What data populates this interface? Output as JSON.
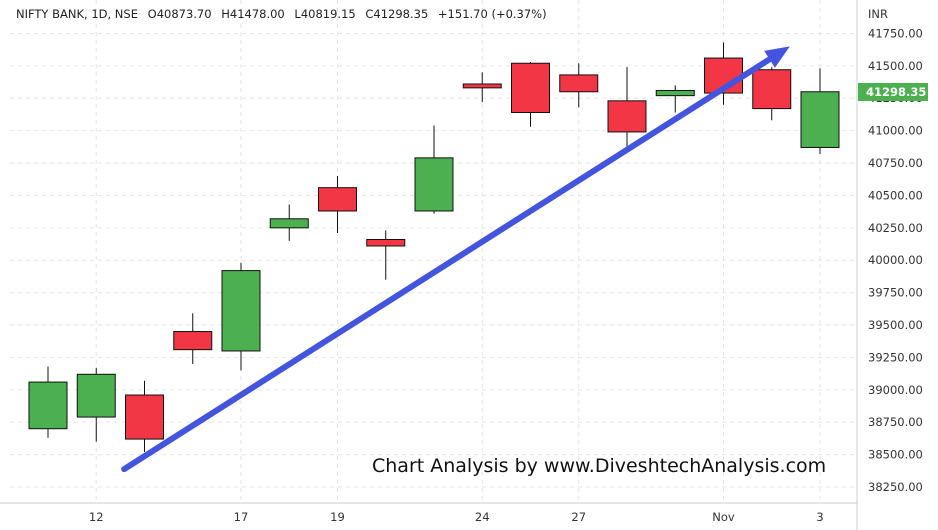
{
  "header": {
    "symbol_line": "NIFTY BANK, 1D, NSE",
    "open": "O40873.70",
    "high": "H41478.00",
    "low": "L40819.15",
    "close": "C41298.35",
    "change": "+151.70 (+0.37%)"
  },
  "watermark": "Chart Analysis by www.DiveshtechAnalysis.com",
  "colors": {
    "up": "#4caf50",
    "down": "#f23645",
    "arrow": "#4455dd",
    "price_label_bg": "#4caf50"
  },
  "chart_data": {
    "type": "candlestick",
    "y_axis_label": "INR",
    "ylim": [
      38150,
      41900
    ],
    "y_ticks": [
      "38250.00",
      "38500.00",
      "38750.00",
      "39000.00",
      "39250.00",
      "39500.00",
      "39750.00",
      "40000.00",
      "40250.00",
      "40500.00",
      "40750.00",
      "41000.00",
      "41250.00",
      "41500.00",
      "41750.00"
    ],
    "x_ticks": [
      "12",
      "17",
      "19",
      "24",
      "27",
      "Nov",
      "3"
    ],
    "grid": true,
    "last_price_label": "41298.35",
    "candles": [
      {
        "o": 38700,
        "h": 39180,
        "l": 38630,
        "c": 39060
      },
      {
        "o": 38790,
        "h": 39170,
        "l": 38600,
        "c": 39120
      },
      {
        "o": 38960,
        "h": 39070,
        "l": 38520,
        "c": 38620
      },
      {
        "o": 39450,
        "h": 39590,
        "l": 39200,
        "c": 39310
      },
      {
        "o": 39300,
        "h": 39980,
        "l": 39150,
        "c": 39920
      },
      {
        "o": 40250,
        "h": 40430,
        "l": 40150,
        "c": 40320
      },
      {
        "o": 40560,
        "h": 40650,
        "l": 40210,
        "c": 40380
      },
      {
        "o": 40160,
        "h": 40230,
        "l": 39850,
        "c": 40110
      },
      {
        "o": 40380,
        "h": 41040,
        "l": 40360,
        "c": 40790
      },
      {
        "o": 41360,
        "h": 41450,
        "l": 41220,
        "c": 41330
      },
      {
        "o": 41520,
        "h": 41530,
        "l": 41030,
        "c": 41140
      },
      {
        "o": 41430,
        "h": 41520,
        "l": 41180,
        "c": 41300
      },
      {
        "o": 41230,
        "h": 41490,
        "l": 40860,
        "c": 40990
      },
      {
        "o": 41270,
        "h": 41350,
        "l": 41140,
        "c": 41310
      },
      {
        "o": 41560,
        "h": 41680,
        "l": 41200,
        "c": 41290
      },
      {
        "o": 41470,
        "h": 41490,
        "l": 41080,
        "c": 41170
      },
      {
        "o": 40870,
        "h": 41480,
        "l": 40820,
        "c": 41300
      }
    ],
    "trend_arrow": {
      "from_index": 2.2,
      "from_price": 38450,
      "to_index": 16.1,
      "to_price": 41650
    }
  }
}
